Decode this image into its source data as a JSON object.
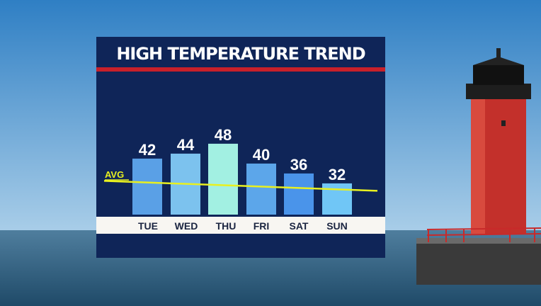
{
  "chart_data": {
    "type": "bar",
    "title": "HIGH TEMPERATURE TREND",
    "categories": [
      "TUE",
      "WED",
      "THU",
      "FRI",
      "SAT",
      "SUN"
    ],
    "values": [
      42,
      44,
      48,
      40,
      36,
      32
    ],
    "bar_colors": [
      "#5aa0e6",
      "#7cc2ee",
      "#a2f0e2",
      "#5ca6ea",
      "#4a94ea",
      "#70c6f6"
    ],
    "data_labels": [
      "42",
      "44",
      "48",
      "40",
      "36",
      "32"
    ],
    "reference_line": {
      "label": "AVG",
      "start_value": 33,
      "end_value": 29,
      "color": "#e8f020"
    },
    "grid": false,
    "legend": "none",
    "background_color": "#0f2558",
    "accent_color": "#c8202a"
  }
}
